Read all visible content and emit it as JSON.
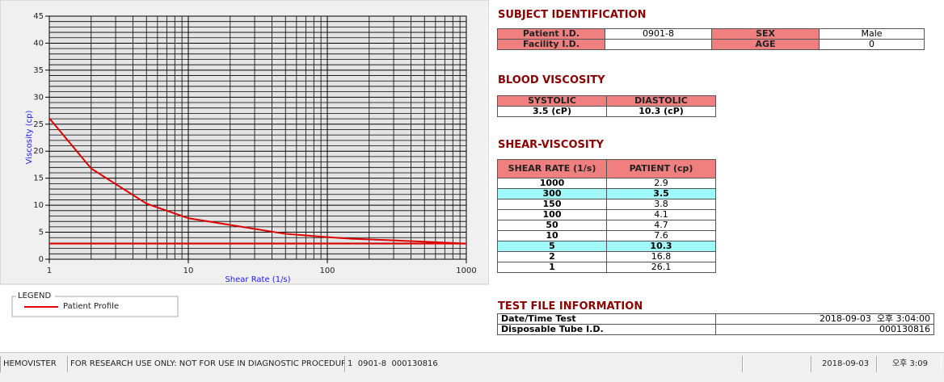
{
  "chart_data": {
    "type": "line",
    "x_label": "Shear Rate (1/s)",
    "y_label": "Viscosity (cp)",
    "xscale": "log",
    "xlim": [
      1,
      1000
    ],
    "xticks": [
      1,
      10,
      100,
      1000
    ],
    "ylim": [
      0,
      45
    ],
    "yticks": [
      0,
      5,
      10,
      15,
      20,
      25,
      30,
      35,
      40,
      45
    ],
    "x_minor_grid": [
      2,
      3,
      4,
      5,
      6,
      7,
      8,
      9,
      20,
      30,
      40,
      50,
      60,
      70,
      80,
      90,
      200,
      300,
      400,
      500,
      600,
      700,
      800,
      900
    ],
    "y_minor_grid": [
      1,
      2,
      3,
      4,
      6,
      7,
      8,
      9,
      11,
      12,
      13,
      14,
      16,
      17,
      18,
      19,
      21,
      22,
      23,
      24,
      26,
      27,
      28,
      29,
      31,
      32,
      33,
      34,
      36,
      37,
      38,
      39,
      41,
      42,
      43,
      44
    ],
    "grid": true,
    "legend_title": "LEGEND",
    "series": [
      {
        "name": "Patient Profile",
        "color": "#e00000",
        "x": [
          1,
          2,
          5,
          10,
          50,
          100,
          150,
          300,
          1000
        ],
        "values": [
          26.1,
          16.8,
          10.3,
          7.6,
          4.7,
          4.1,
          3.8,
          3.5,
          2.9
        ]
      },
      {
        "color": "#e00000",
        "x": [
          1,
          1000
        ],
        "values": [
          2.9,
          2.9
        ]
      }
    ]
  },
  "subject_identification": {
    "title": "SUBJECT IDENTIFICATION",
    "rows": [
      [
        "Patient I.D.",
        "0901-8",
        "SEX",
        "Male"
      ],
      [
        "Facility I.D.",
        null,
        "AGE",
        "0"
      ]
    ]
  },
  "blood_viscosity": {
    "title": "BLOOD VISCOSITY",
    "header": [
      "SYSTOLIC",
      "DIASTOLIC"
    ],
    "rows": [
      [
        "3.5 (cP)",
        "10.3 (cP)"
      ]
    ]
  },
  "shear_viscosity": {
    "title": "SHEAR-VISCOSITY",
    "header": [
      "SHEAR RATE (1/s)",
      "PATIENT (cp)"
    ],
    "rows": [
      [
        "1000",
        "2.9"
      ],
      [
        "300",
        "3.5"
      ],
      [
        "150",
        "3.8"
      ],
      [
        "100",
        "4.1"
      ],
      [
        "50",
        "4.7"
      ],
      [
        "10",
        "7.6"
      ],
      [
        "5",
        "10.3"
      ],
      [
        "2",
        "16.8"
      ],
      [
        "1",
        "26.1"
      ]
    ],
    "highlight_rows": [
      1,
      6
    ]
  },
  "test_file_information": {
    "title": "TEST FILE INFORMATION",
    "rows": [
      [
        "Date/Time Test",
        "2018-09-03  오후 3:04:00"
      ],
      [
        "Disposable Tube I.D.",
        "000130816"
      ]
    ]
  },
  "status_bar": [
    "HEMOVISTER",
    "FOR RESEARCH USE ONLY: NOT FOR USE IN DIAGNOSTIC PROCEDURES",
    "1  0901-8  000130816",
    null,
    "2018-09-03",
    "오후 3:09"
  ]
}
